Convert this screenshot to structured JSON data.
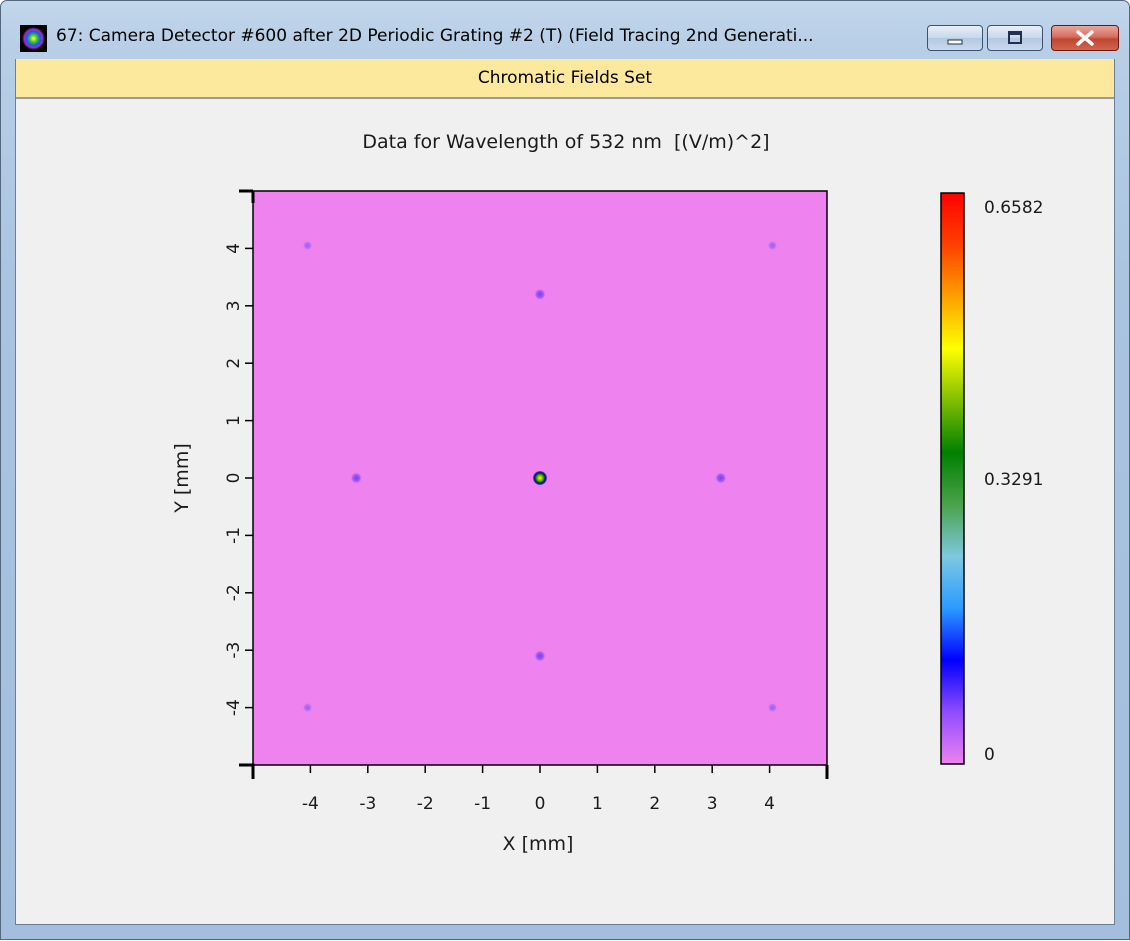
{
  "window": {
    "title": "67: Camera Detector #600 after 2D Periodic Grating #2 (T) (Field Tracing 2nd Generati...",
    "minimize_icon": "minimize-icon",
    "restore_icon": "restore-icon",
    "close_icon": "close-icon"
  },
  "panel": {
    "header": "Chromatic Fields Set"
  },
  "colors": {
    "field_background": "#ee82ee",
    "header_band": "#fde99d",
    "colorbar_stops": [
      "#ee82ee",
      "#8e4cff",
      "#0000ff",
      "#2b9bff",
      "#7ec8e0",
      "#4aa24a",
      "#008000",
      "#7fbf00",
      "#ffff00",
      "#ffa000",
      "#ff4000",
      "#ff0000"
    ]
  },
  "chart_data": {
    "type": "heatmap",
    "title": "Data for Wavelength of 532 nm  [(V/m)^2]",
    "xlabel": "X [mm]",
    "ylabel": "Y [mm]",
    "xlim": [
      -5,
      5
    ],
    "ylim": [
      -5,
      5
    ],
    "xticks": [
      -4,
      -3,
      -2,
      -1,
      0,
      1,
      2,
      3,
      4
    ],
    "yticks": [
      -4,
      -3,
      -2,
      -1,
      0,
      1,
      2,
      3,
      4
    ],
    "xtick_labels": [
      "-4",
      "-3",
      "-2",
      "-1",
      "0",
      "1",
      "2",
      "3",
      "4"
    ],
    "ytick_labels": [
      "-4",
      "-3",
      "-2",
      "-1",
      "0",
      "1",
      "2",
      "3",
      "4"
    ],
    "colorbar": {
      "min": 0,
      "max": 0.6582,
      "labels": [
        "0.6582",
        "0.3291",
        "0"
      ]
    },
    "peaks": [
      {
        "x": 0,
        "y": 0,
        "value": 0.6582
      },
      {
        "x": 0,
        "y": 3.2,
        "value": 0.03
      },
      {
        "x": 0,
        "y": -3.1,
        "value": 0.03
      },
      {
        "x": -3.2,
        "y": 0,
        "value": 0.03
      },
      {
        "x": 3.15,
        "y": 0,
        "value": 0.03
      },
      {
        "x": -4.05,
        "y": 4.05,
        "value": 0.015
      },
      {
        "x": 4.05,
        "y": 4.05,
        "value": 0.015
      },
      {
        "x": -4.05,
        "y": -4.0,
        "value": 0.015
      },
      {
        "x": 4.05,
        "y": -4.0,
        "value": 0.015
      }
    ]
  }
}
